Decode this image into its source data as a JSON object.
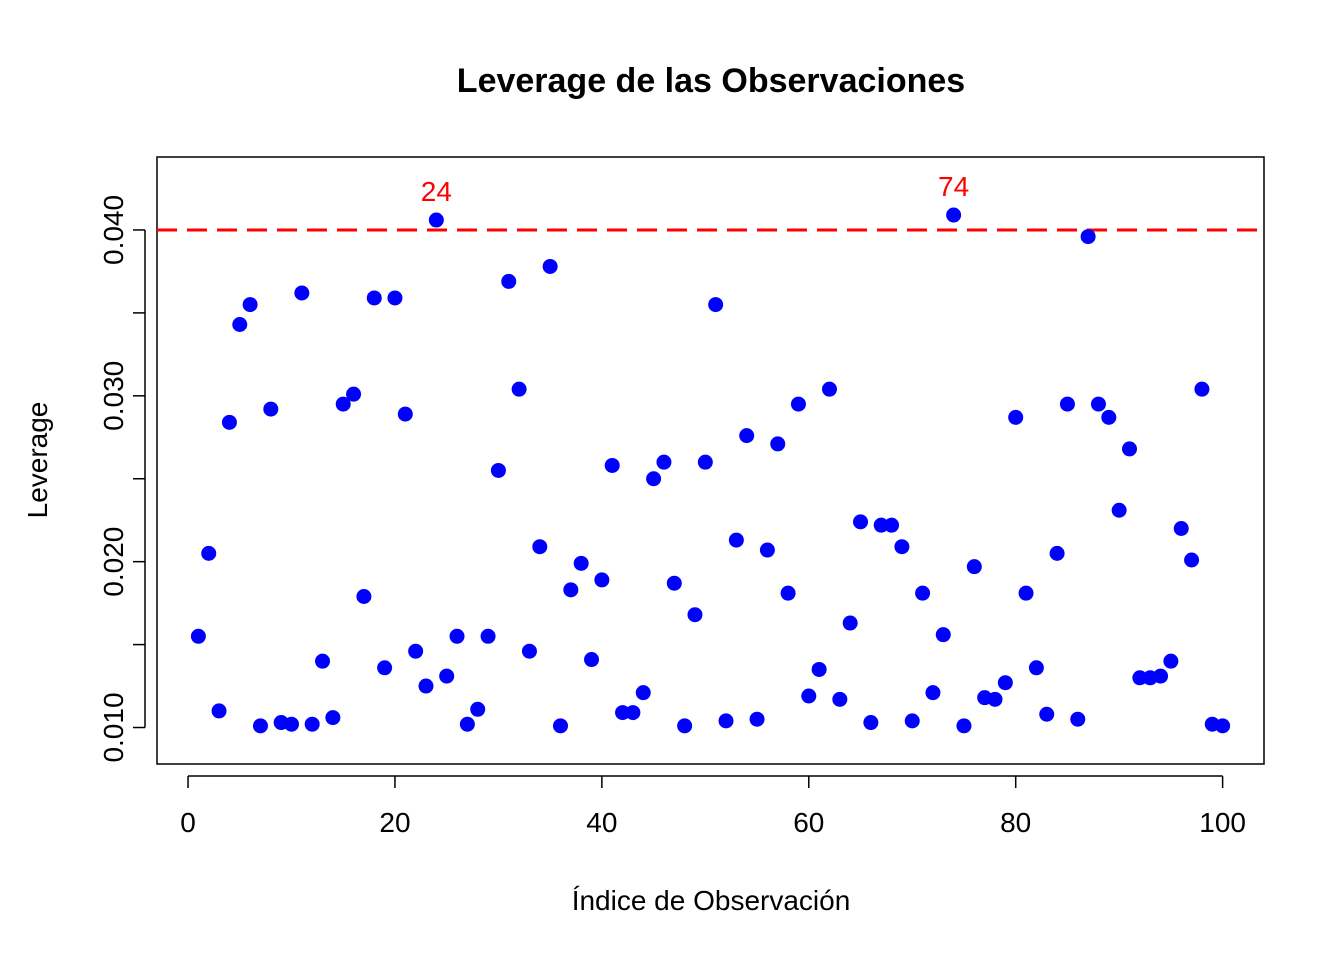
{
  "chart_data": {
    "type": "scatter",
    "title": "Leverage de las Observaciones",
    "xlabel": "Índice de Observación",
    "ylabel": "Leverage",
    "xlim": [
      -3,
      104
    ],
    "ylim": [
      0.0078,
      0.0444
    ],
    "x_ticks": [
      0,
      20,
      40,
      60,
      80,
      100
    ],
    "x_tick_labels": [
      "0",
      "20",
      "40",
      "60",
      "80",
      "100"
    ],
    "y_ticks": [
      0.01,
      0.015,
      0.02,
      0.025,
      0.03,
      0.035,
      0.04
    ],
    "y_tick_labels": [
      "0.010",
      "",
      "0.020",
      "",
      "0.030",
      "",
      "0.040"
    ],
    "grid": false,
    "point_color": "#0000ff",
    "threshold": {
      "value": 0.04,
      "color": "#ff0000",
      "style": "dashed"
    },
    "annotations": [
      {
        "x": 24,
        "y": 0.0406,
        "text": "24",
        "color": "#ff0000"
      },
      {
        "x": 74,
        "y": 0.0409,
        "text": "74",
        "color": "#ff0000"
      }
    ],
    "series": [
      {
        "x": [
          1,
          2,
          3,
          4,
          5,
          6,
          7,
          8,
          9,
          10,
          11,
          12,
          13,
          14,
          15,
          16,
          17,
          18,
          19,
          20,
          21,
          22,
          23,
          24,
          25,
          26,
          27,
          28,
          29,
          30,
          31,
          32,
          33,
          34,
          35,
          36,
          37,
          38,
          39,
          40,
          41,
          42,
          43,
          44,
          45,
          46,
          47,
          48,
          49,
          50,
          51,
          52,
          53,
          54,
          55,
          56,
          57,
          58,
          59,
          60,
          61,
          62,
          63,
          64,
          65,
          66,
          67,
          68,
          69,
          70,
          71,
          72,
          73,
          74,
          75,
          76,
          77,
          78,
          79,
          80,
          81,
          82,
          83,
          84,
          85,
          86,
          87,
          88,
          89,
          90,
          91,
          92,
          93,
          94,
          95,
          96,
          97,
          98,
          99,
          100
        ],
        "values": [
          0.0155,
          0.0205,
          0.011,
          0.0284,
          0.0343,
          0.0355,
          0.0101,
          0.0292,
          0.0103,
          0.0102,
          0.0362,
          0.0102,
          0.014,
          0.0106,
          0.0295,
          0.0301,
          0.0179,
          0.0359,
          0.0136,
          0.0359,
          0.0289,
          0.0146,
          0.0125,
          0.0406,
          0.0131,
          0.0155,
          0.0102,
          0.0111,
          0.0155,
          0.0255,
          0.0369,
          0.0304,
          0.0146,
          0.0209,
          0.0378,
          0.0101,
          0.0183,
          0.0199,
          0.0141,
          0.0189,
          0.0258,
          0.0109,
          0.0109,
          0.0121,
          0.025,
          0.026,
          0.0187,
          0.0101,
          0.0168,
          0.026,
          0.0355,
          0.0104,
          0.0213,
          0.0276,
          0.0105,
          0.0207,
          0.0271,
          0.0181,
          0.0295,
          0.0119,
          0.0135,
          0.0304,
          0.0117,
          0.0163,
          0.0224,
          0.0103,
          0.0222,
          0.0222,
          0.0209,
          0.0104,
          0.0181,
          0.0121,
          0.0156,
          0.0409,
          0.0101,
          0.0197,
          0.0118,
          0.0117,
          0.0127,
          0.0287,
          0.0181,
          0.0136,
          0.0108,
          0.0205,
          0.0295,
          0.0105,
          0.0396,
          0.0295,
          0.0287,
          0.0231,
          0.0268,
          0.013,
          0.013,
          0.0131,
          0.014,
          0.022,
          0.0201,
          0.0304,
          0.0102,
          0.0101
        ]
      }
    ]
  }
}
